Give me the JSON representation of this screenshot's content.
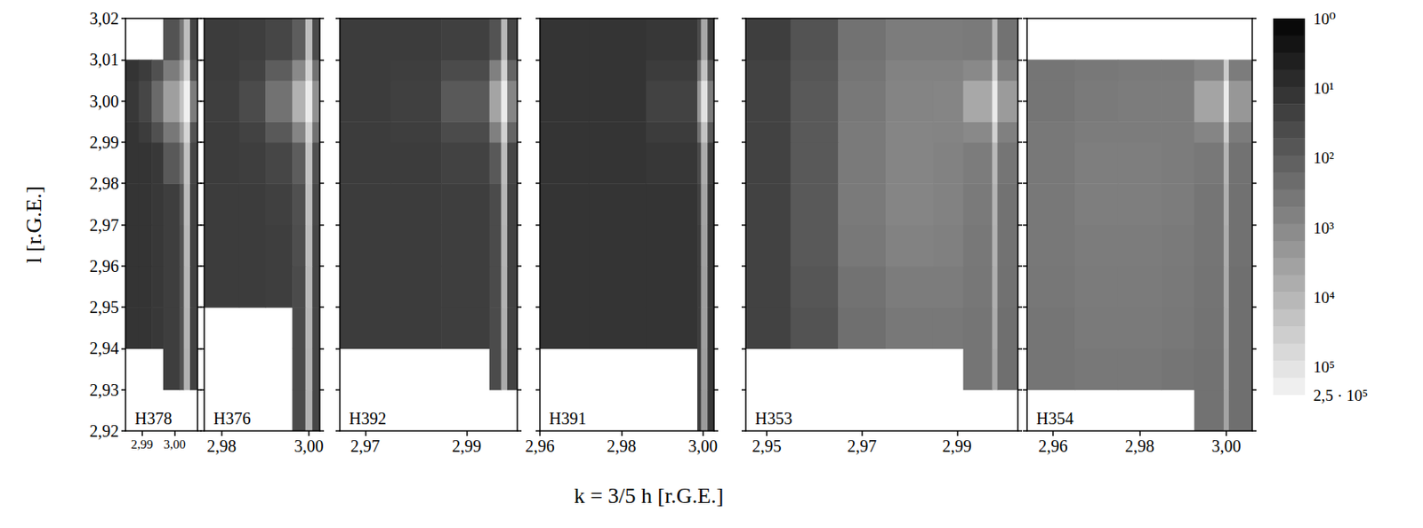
{
  "chart_data": {
    "type": "heatmap",
    "xlabel": "k = 3/5 h [r.G.E.]",
    "ylabel": "l [r.G.E.]",
    "ylim": [
      2.92,
      3.02
    ],
    "yticks": [
      {
        "value": 2.92,
        "label": "2,92"
      },
      {
        "value": 2.93,
        "label": "2,93"
      },
      {
        "value": 2.94,
        "label": "2,94"
      },
      {
        "value": 2.95,
        "label": "2,95"
      },
      {
        "value": 2.96,
        "label": "2,96"
      },
      {
        "value": 2.97,
        "label": "2,97"
      },
      {
        "value": 2.98,
        "label": "2,98"
      },
      {
        "value": 2.99,
        "label": "2,99"
      },
      {
        "value": 3.0,
        "label": "3,00"
      },
      {
        "value": 3.01,
        "label": "3,01"
      },
      {
        "value": 3.02,
        "label": "3,02"
      }
    ],
    "l_edges": [
      2.92,
      2.93,
      2.94,
      2.95,
      2.96,
      2.97,
      2.98,
      2.99,
      2.995,
      3.005,
      3.01,
      3.02
    ],
    "colorbar": {
      "log": true,
      "range": [
        1,
        250000
      ],
      "ticks": [
        {
          "value": 1,
          "label": "10⁰"
        },
        {
          "value": 10,
          "label": "10¹"
        },
        {
          "value": 100,
          "label": "10²"
        },
        {
          "value": 1000,
          "label": "10³"
        },
        {
          "value": 10000,
          "label": "10⁴"
        },
        {
          "value": 100000,
          "label": "10⁵"
        },
        {
          "value": 250000,
          "label": "2,5 · 10⁵"
        }
      ]
    },
    "panels": [
      {
        "title": "H378",
        "xlim": [
          2.985,
          3.007
        ],
        "xticks": [
          {
            "value": 2.99,
            "label": "2,99"
          },
          {
            "value": 3.0,
            "label": "3,00"
          }
        ],
        "k_edges": [
          2.985,
          2.989,
          2.993,
          2.9965,
          3.0015,
          3.0028,
          3.0047,
          3.007
        ],
        "values": [
          [
            null,
            null,
            null,
            null,
            null,
            null,
            null
          ],
          [
            null,
            null,
            null,
            20,
            60,
            8000,
            25
          ],
          [
            12,
            12,
            15,
            20,
            60,
            9000,
            25
          ],
          [
            12,
            12,
            15,
            20,
            60,
            10000,
            25
          ],
          [
            12,
            12,
            15,
            20,
            60,
            11000,
            25
          ],
          [
            12,
            12,
            15,
            20,
            70,
            13000,
            25
          ],
          [
            12,
            12,
            15,
            80,
            300,
            18000,
            30
          ],
          [
            12,
            18,
            50,
            400,
            3000,
            50000,
            60
          ],
          [
            15,
            30,
            200,
            3000,
            20000,
            200000,
            500
          ],
          [
            12,
            18,
            50,
            500,
            3000,
            50000,
            60
          ],
          [
            null,
            null,
            null,
            60,
            400,
            15000,
            30
          ]
        ]
      },
      {
        "title": "H376",
        "tick_labels": "x",
        "xlim": [
          2.976,
          3.0025
        ],
        "xticks": [
          {
            "value": 2.98,
            "label": "2,98"
          },
          {
            "value": 3.0,
            "label": "3,00"
          }
        ],
        "k_edges": [
          2.976,
          2.984,
          2.99,
          2.9962,
          2.9992,
          3.0008,
          3.0025
        ],
        "values": [
          [
            null,
            null,
            null,
            40,
            8000,
            30
          ],
          [
            null,
            null,
            null,
            40,
            9000,
            30
          ],
          [
            null,
            null,
            null,
            40,
            10000,
            30
          ],
          [
            18,
            18,
            20,
            40,
            12000,
            30
          ],
          [
            18,
            18,
            20,
            45,
            14000,
            30
          ],
          [
            18,
            18,
            22,
            50,
            16000,
            35
          ],
          [
            18,
            20,
            30,
            100,
            20000,
            50
          ],
          [
            18,
            25,
            80,
            800,
            40000,
            300
          ],
          [
            20,
            40,
            300,
            8000,
            150000,
            1500
          ],
          [
            18,
            25,
            100,
            1000,
            40000,
            300
          ],
          [
            18,
            20,
            30,
            100,
            15000,
            40
          ]
        ]
      },
      {
        "title": "H392",
        "tick_labels": "x",
        "xlim": [
          2.965,
          3.0
        ],
        "xticks": [
          {
            "value": 2.97,
            "label": "2,97"
          },
          {
            "value": 2.99,
            "label": "2,99"
          }
        ],
        "k_edges": [
          2.965,
          2.975,
          2.985,
          2.9945,
          2.9968,
          2.998,
          3.0
        ],
        "values": [
          [
            null,
            null,
            null,
            null,
            null,
            null
          ],
          [
            null,
            null,
            null,
            40,
            6000,
            25
          ],
          [
            18,
            18,
            20,
            40,
            7000,
            25
          ],
          [
            18,
            18,
            20,
            40,
            8000,
            25
          ],
          [
            18,
            18,
            20,
            40,
            9000,
            25
          ],
          [
            18,
            18,
            20,
            40,
            10000,
            25
          ],
          [
            18,
            18,
            25,
            80,
            14000,
            30
          ],
          [
            18,
            20,
            40,
            600,
            40000,
            150
          ],
          [
            18,
            22,
            80,
            4000,
            150000,
            800
          ],
          [
            18,
            20,
            40,
            600,
            40000,
            150
          ],
          [
            18,
            18,
            22,
            60,
            12000,
            30
          ]
        ]
      },
      {
        "title": "H391",
        "tick_labels": "x",
        "xlim": [
          2.96,
          3.0027
        ],
        "xticks": [
          {
            "value": 2.96,
            "label": "2,96"
          },
          {
            "value": 2.98,
            "label": "2,98"
          },
          {
            "value": 3.0,
            "label": "3,00"
          }
        ],
        "k_edges": [
          2.96,
          2.972,
          2.986,
          2.9986,
          2.9995,
          3.0011,
          3.0027
        ],
        "values": [
          [
            null,
            null,
            null,
            20,
            2500,
            15
          ],
          [
            null,
            null,
            null,
            20,
            2800,
            15
          ],
          [
            12,
            12,
            12,
            20,
            3000,
            15
          ],
          [
            12,
            12,
            12,
            20,
            3200,
            15
          ],
          [
            12,
            12,
            12,
            20,
            3500,
            15
          ],
          [
            12,
            12,
            12,
            25,
            4000,
            15
          ],
          [
            12,
            12,
            14,
            40,
            6000,
            20
          ],
          [
            12,
            12,
            18,
            300,
            20000,
            80
          ],
          [
            12,
            12,
            25,
            2000,
            100000,
            500
          ],
          [
            12,
            12,
            18,
            300,
            20000,
            80
          ],
          [
            12,
            12,
            14,
            40,
            5000,
            20
          ]
        ]
      },
      {
        "title": "H353",
        "tick_labels": "x",
        "xlim": [
          2.9456,
          3.0028
        ],
        "xticks": [
          {
            "value": 2.95,
            "label": "2,95"
          },
          {
            "value": 2.97,
            "label": "2,97"
          },
          {
            "value": 2.99,
            "label": "2,99"
          }
        ],
        "k_edges": [
          2.9456,
          2.955,
          2.965,
          2.975,
          2.985,
          2.9913,
          2.9974,
          2.9985,
          3.0028
        ],
        "values": [
          [
            null,
            null,
            null,
            null,
            null,
            null,
            null,
            null
          ],
          [
            null,
            null,
            null,
            null,
            null,
            350,
            5000,
            250
          ],
          [
            25,
            60,
            250,
            400,
            400,
            350,
            6000,
            250
          ],
          [
            25,
            70,
            300,
            500,
            500,
            380,
            7000,
            280
          ],
          [
            25,
            80,
            400,
            700,
            600,
            400,
            8000,
            300
          ],
          [
            25,
            80,
            450,
            800,
            700,
            450,
            9000,
            300
          ],
          [
            25,
            80,
            450,
            800,
            700,
            500,
            12000,
            350
          ],
          [
            25,
            80,
            450,
            800,
            750,
            1000,
            40000,
            600
          ],
          [
            25,
            80,
            400,
            750,
            800,
            5000,
            150000,
            2500
          ],
          [
            25,
            70,
            350,
            700,
            700,
            1000,
            40000,
            600
          ],
          [
            20,
            60,
            300,
            500,
            500,
            450,
            12000,
            300
          ]
        ]
      },
      {
        "title": "H354",
        "tick_labels": "x",
        "xlim": [
          2.954,
          3.006
        ],
        "xticks": [
          {
            "value": 2.96,
            "label": "2,96"
          },
          {
            "value": 2.98,
            "label": "2,98"
          },
          {
            "value": 3.0,
            "label": "3,00"
          }
        ],
        "k_edges": [
          2.954,
          2.965,
          2.975,
          2.985,
          2.9926,
          2.9994,
          3.0006,
          3.006
        ],
        "values": [
          [
            null,
            null,
            null,
            null,
            300,
            4000,
            250
          ],
          [
            350,
            400,
            400,
            350,
            300,
            4500,
            250
          ],
          [
            350,
            450,
            450,
            400,
            320,
            5000,
            250
          ],
          [
            380,
            480,
            480,
            420,
            330,
            5500,
            260
          ],
          [
            400,
            500,
            500,
            450,
            350,
            6000,
            280
          ],
          [
            400,
            550,
            550,
            500,
            350,
            7000,
            280
          ],
          [
            400,
            550,
            550,
            500,
            400,
            9000,
            300
          ],
          [
            400,
            500,
            500,
            500,
            800,
            30000,
            500
          ],
          [
            350,
            450,
            500,
            500,
            4000,
            150000,
            2000
          ],
          [
            350,
            400,
            450,
            450,
            800,
            30000,
            500
          ],
          [
            null,
            null,
            null,
            null,
            null,
            null,
            null
          ]
        ]
      }
    ]
  }
}
